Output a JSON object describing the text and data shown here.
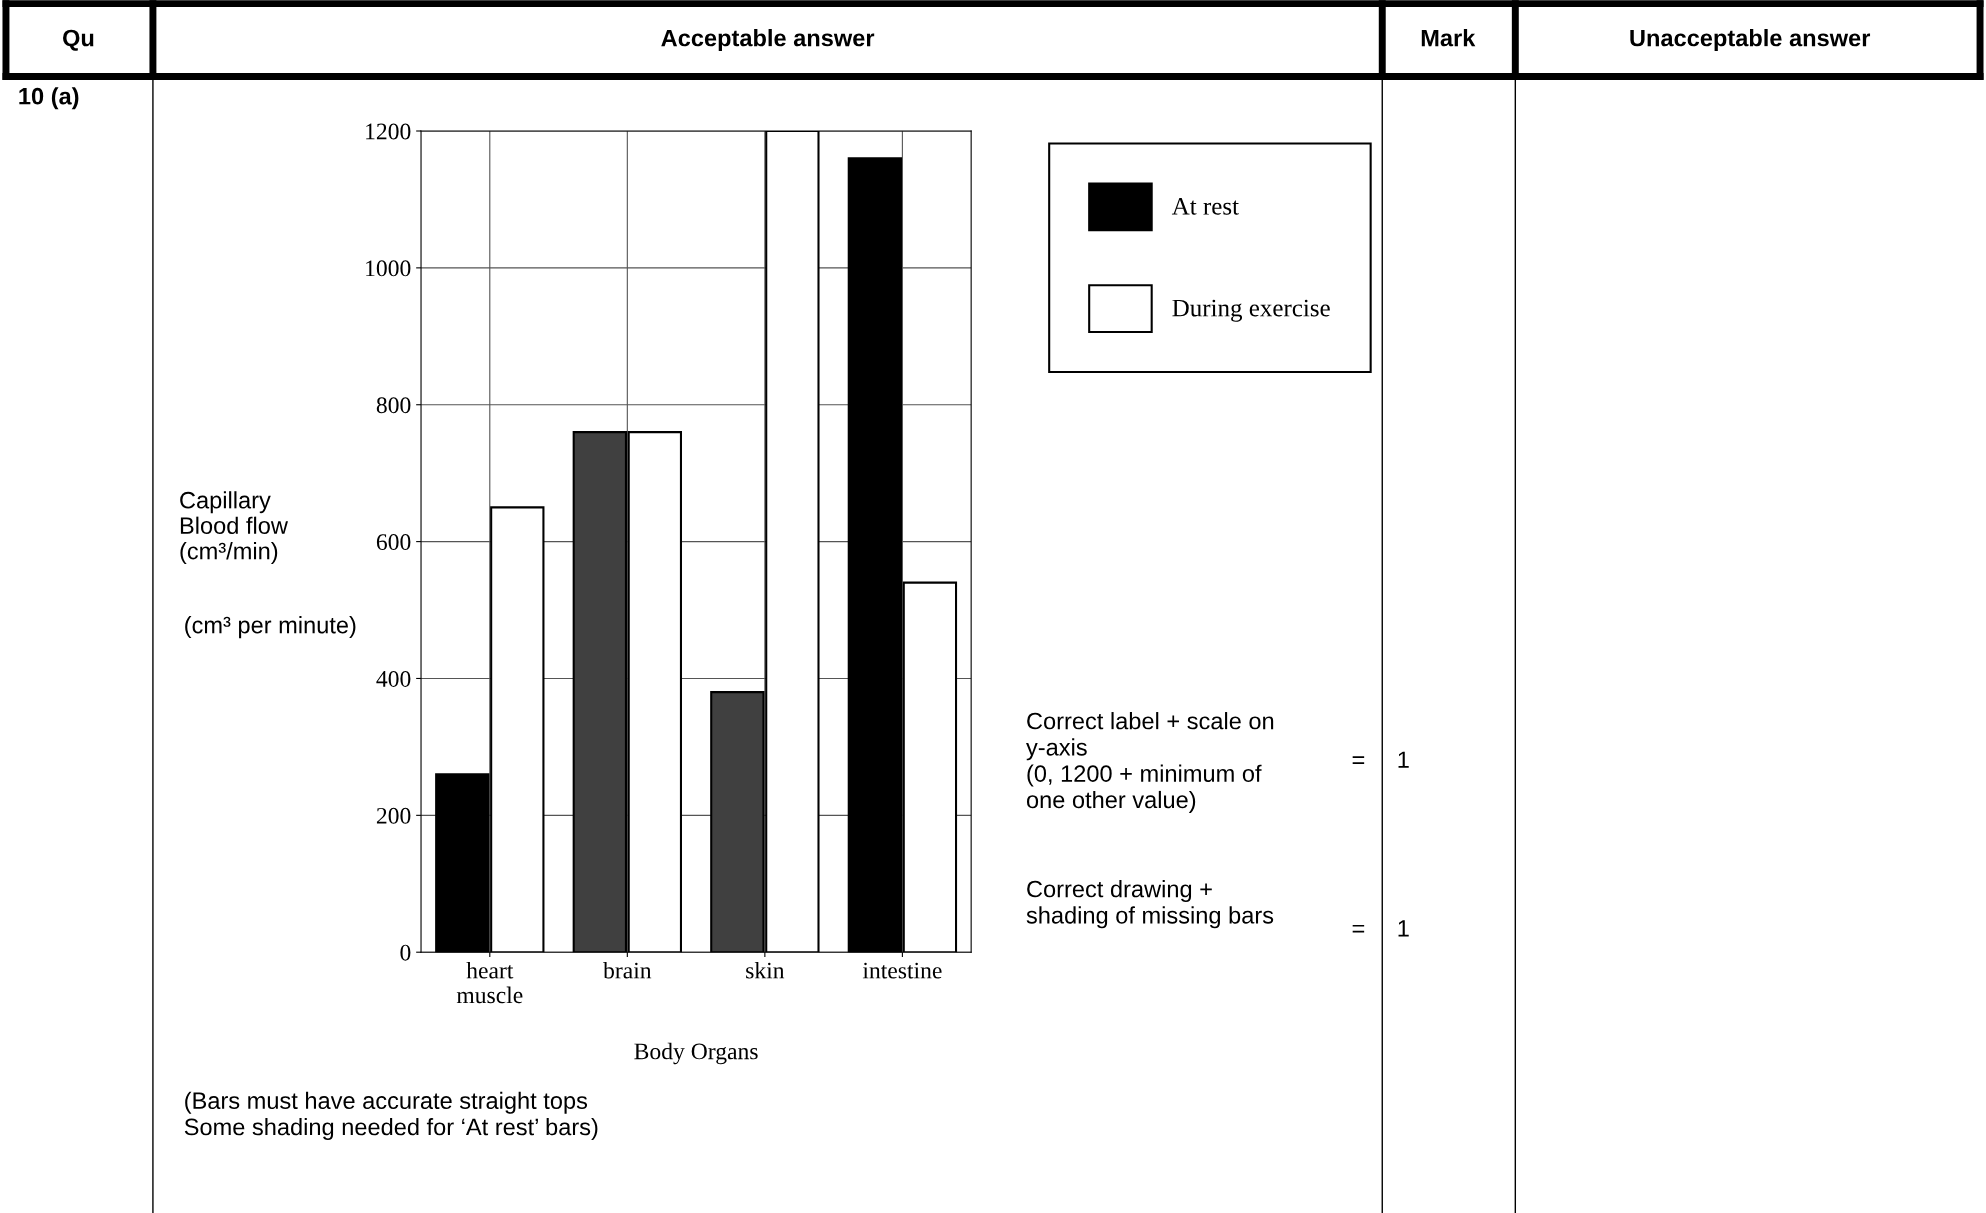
{
  "chart_data": {
    "type": "bar",
    "xlabel": "Body Organs",
    "ylabel": "Capillary\nBlood flow\n(cm³/min)",
    "categories": [
      "heart\nmuscle",
      "brain",
      "skin",
      "intestine"
    ],
    "series": [
      {
        "name": "At rest",
        "color": "#000000",
        "colors": [
          "#000000",
          "#404040",
          "#404040",
          "#000000"
        ],
        "values": [
          260,
          760,
          380,
          1160
        ]
      },
      {
        "name": "During exercise",
        "color": "#ffffff",
        "values": [
          650,
          760,
          1200,
          540
        ]
      }
    ],
    "ylim": [
      0,
      1200
    ],
    "yticks": [
      0,
      200,
      400,
      600,
      800,
      1000,
      1200
    ],
    "grid": true,
    "legend": "right",
    "annotations": [
      "Qu",
      "Acceptable answer",
      "Mark",
      "Unacceptable answer",
      "10 (a)",
      "(cm³ per minute)",
      "Correct label + scale on\ny-axis\n(0, 1200 + minimum of\none other value)",
      "=",
      "1",
      "Correct drawing +\nshading of missing bars",
      "=",
      "1",
      "(Bars must have accurate straight tops\nSome shading needed for ‘At rest’ bars)"
    ]
  }
}
